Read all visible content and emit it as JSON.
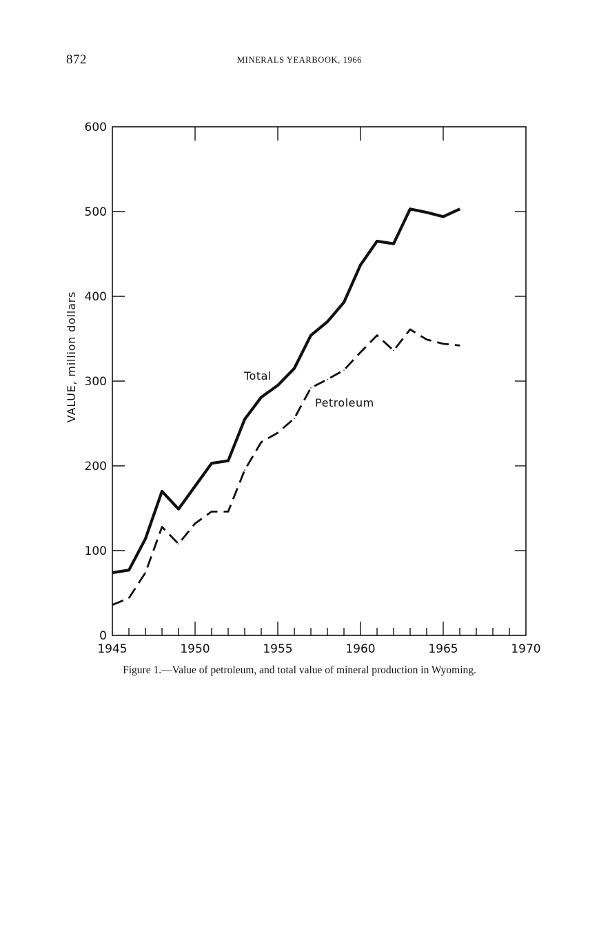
{
  "header": {
    "page_number": "872",
    "running_head": "MINERALS YEARBOOK, 1966"
  },
  "caption": "Figure 1.—Value of petroleum, and total value of mineral production in Wyoming.",
  "chart_data": {
    "type": "line",
    "title": "",
    "xlabel": "",
    "ylabel": "VALUE, million dollars",
    "xlim": [
      1945,
      1970
    ],
    "ylim": [
      0,
      600
    ],
    "x_ticks": [
      1945,
      1950,
      1955,
      1960,
      1965,
      1970
    ],
    "x_tick_labels": [
      "1945",
      "1950",
      "1955",
      "1960",
      "1965",
      "1970"
    ],
    "y_ticks": [
      0,
      100,
      200,
      300,
      400,
      500,
      600
    ],
    "y_tick_labels": [
      "0",
      "100",
      "200",
      "300",
      "400",
      "500",
      "600"
    ],
    "grid": false,
    "series": [
      {
        "name": "Total",
        "style": "solid",
        "x": [
          1945,
          1946,
          1947,
          1948,
          1949,
          1950,
          1951,
          1952,
          1953,
          1954,
          1955,
          1956,
          1957,
          1958,
          1959,
          1960,
          1961,
          1962,
          1963,
          1964,
          1965,
          1966
        ],
        "values": [
          74,
          77,
          114,
          170,
          149,
          176,
          203,
          206,
          255,
          281,
          295,
          315,
          354,
          370,
          393,
          437,
          465,
          462,
          503,
          499,
          494,
          503
        ]
      },
      {
        "name": "Petroleum",
        "style": "dashed",
        "x": [
          1945,
          1946,
          1947,
          1948,
          1949,
          1950,
          1951,
          1952,
          1953,
          1954,
          1955,
          1956,
          1957,
          1958,
          1959,
          1960,
          1961,
          1962,
          1963,
          1964,
          1965,
          1966
        ],
        "values": [
          36,
          44,
          74,
          128,
          108,
          132,
          146,
          146,
          195,
          228,
          239,
          256,
          292,
          302,
          313,
          334,
          354,
          336,
          361,
          349,
          344,
          342
        ]
      }
    ]
  }
}
